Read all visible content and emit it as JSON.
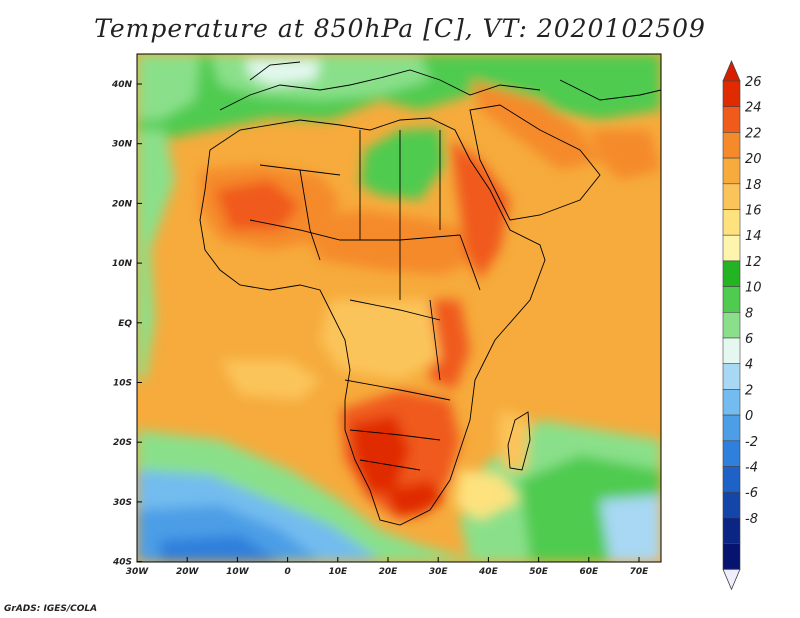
{
  "title": "Temperature at 850hPa [C], VT: 2020102509",
  "footer": "GrADS: IGES/COLA",
  "axes": {
    "x_ticks": [
      "30W",
      "20W",
      "10W",
      "0",
      "10E",
      "20E",
      "30E",
      "40E",
      "50E",
      "60E",
      "70E"
    ],
    "y_ticks": [
      "40N",
      "30N",
      "20N",
      "10N",
      "EQ",
      "10S",
      "20S",
      "30S",
      "40S"
    ]
  },
  "colorbar": {
    "labels": [
      "26",
      "24",
      "22",
      "20",
      "18",
      "16",
      "14",
      "12",
      "10",
      "8",
      "6",
      "4",
      "2",
      "0",
      "-2",
      "-4",
      "-6",
      "-8"
    ],
    "colors": [
      "#e02b00",
      "#f05a1a",
      "#f58a2a",
      "#f6ab3c",
      "#fbc45a",
      "#fde27e",
      "#fdf4ae",
      "#22b422",
      "#4fcb4f",
      "#8ae08a",
      "#e4f8ef",
      "#a8d8f4",
      "#72bcef",
      "#4c9ee6",
      "#2f7fdc",
      "#1e62c8",
      "#1445a8",
      "#0b2585",
      "#061470"
    ],
    "overflow_high_color": "#d81e00",
    "overflow_low_color": "#eeeeff"
  }
}
